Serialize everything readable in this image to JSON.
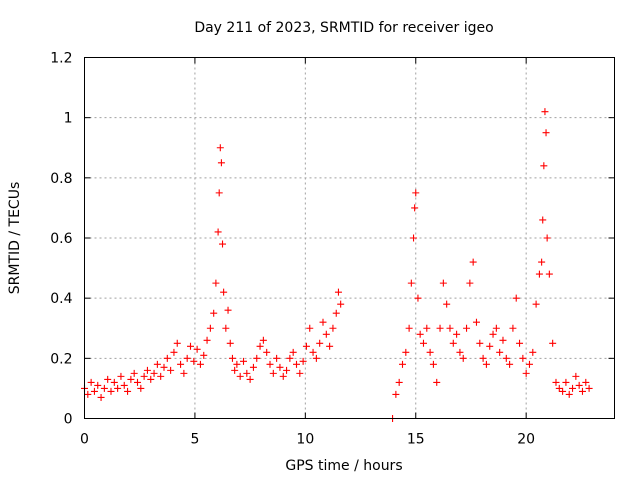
{
  "chart_data": {
    "type": "scatter",
    "title": "Day 211 of 2023, SRMTID for receiver igeo",
    "xlabel": "GPS time / hours",
    "ylabel": "SRMTID / TECUs",
    "xlim": [
      0,
      24
    ],
    "ylim": [
      0,
      1.2
    ],
    "xticks": [
      0,
      5,
      10,
      15,
      20
    ],
    "xtick_labels": [
      "0",
      "5",
      "10",
      "15",
      "20"
    ],
    "yticks": [
      0,
      0.2,
      0.4,
      0.6,
      0.8,
      1.0,
      1.2
    ],
    "ytick_labels": [
      "0",
      "0.2",
      "0.4",
      "0.6",
      "0.8",
      "1",
      "1.2"
    ],
    "grid": true,
    "marker": "+",
    "marker_color": "#ff0000",
    "series": [
      {
        "name": "SRMTID",
        "x": [
          0.0,
          0.15,
          0.3,
          0.45,
          0.6,
          0.75,
          0.9,
          1.05,
          1.2,
          1.35,
          1.5,
          1.65,
          1.8,
          1.95,
          2.1,
          2.25,
          2.4,
          2.55,
          2.7,
          2.85,
          3.0,
          3.15,
          3.3,
          3.45,
          3.6,
          3.75,
          3.9,
          4.05,
          4.2,
          4.35,
          4.5,
          4.65,
          4.8,
          4.95,
          5.1,
          5.25,
          5.4,
          5.55,
          5.7,
          5.85,
          5.95,
          6.05,
          6.1,
          6.15,
          6.2,
          6.25,
          6.3,
          6.4,
          6.5,
          6.6,
          6.7,
          6.8,
          6.9,
          7.05,
          7.2,
          7.35,
          7.5,
          7.65,
          7.8,
          7.95,
          8.1,
          8.25,
          8.4,
          8.55,
          8.7,
          8.85,
          9.0,
          9.15,
          9.3,
          9.45,
          9.6,
          9.75,
          9.9,
          10.05,
          10.2,
          10.35,
          10.5,
          10.65,
          10.8,
          10.95,
          11.1,
          11.25,
          11.4,
          11.5,
          11.6,
          13.95,
          14.1,
          14.25,
          14.4,
          14.55,
          14.7,
          14.8,
          14.9,
          14.95,
          15.0,
          15.1,
          15.2,
          15.35,
          15.5,
          15.65,
          15.8,
          15.95,
          16.1,
          16.25,
          16.4,
          16.55,
          16.7,
          16.85,
          17.0,
          17.15,
          17.3,
          17.45,
          17.6,
          17.75,
          17.9,
          18.05,
          18.2,
          18.35,
          18.5,
          18.65,
          18.8,
          18.95,
          19.1,
          19.25,
          19.4,
          19.55,
          19.7,
          19.85,
          20.0,
          20.15,
          20.3,
          20.45,
          20.6,
          20.7,
          20.75,
          20.8,
          20.85,
          20.9,
          20.95,
          21.05,
          21.2,
          21.35,
          21.5,
          21.65,
          21.8,
          21.95,
          22.1,
          22.25,
          22.4,
          22.55,
          22.7,
          22.85
        ],
        "y": [
          0.1,
          0.08,
          0.12,
          0.09,
          0.11,
          0.07,
          0.1,
          0.13,
          0.09,
          0.12,
          0.1,
          0.14,
          0.11,
          0.09,
          0.13,
          0.15,
          0.12,
          0.1,
          0.14,
          0.16,
          0.13,
          0.15,
          0.18,
          0.14,
          0.17,
          0.2,
          0.16,
          0.22,
          0.25,
          0.18,
          0.15,
          0.2,
          0.24,
          0.19,
          0.23,
          0.18,
          0.21,
          0.26,
          0.3,
          0.35,
          0.45,
          0.62,
          0.75,
          0.9,
          0.85,
          0.58,
          0.42,
          0.3,
          0.36,
          0.25,
          0.2,
          0.16,
          0.18,
          0.14,
          0.19,
          0.15,
          0.13,
          0.17,
          0.2,
          0.24,
          0.26,
          0.22,
          0.18,
          0.15,
          0.2,
          0.17,
          0.14,
          0.16,
          0.2,
          0.22,
          0.18,
          0.15,
          0.19,
          0.24,
          0.3,
          0.22,
          0.2,
          0.25,
          0.32,
          0.28,
          0.24,
          0.3,
          0.35,
          0.42,
          0.38,
          0.0,
          0.08,
          0.12,
          0.18,
          0.22,
          0.3,
          0.45,
          0.6,
          0.7,
          0.75,
          0.4,
          0.28,
          0.25,
          0.3,
          0.22,
          0.18,
          0.12,
          0.3,
          0.45,
          0.38,
          0.3,
          0.25,
          0.28,
          0.22,
          0.2,
          0.3,
          0.45,
          0.52,
          0.32,
          0.25,
          0.2,
          0.18,
          0.24,
          0.28,
          0.3,
          0.22,
          0.26,
          0.2,
          0.18,
          0.3,
          0.4,
          0.25,
          0.2,
          0.15,
          0.18,
          0.22,
          0.38,
          0.48,
          0.52,
          0.66,
          0.84,
          1.02,
          0.95,
          0.6,
          0.48,
          0.25,
          0.12,
          0.1,
          0.09,
          0.12,
          0.08,
          0.1,
          0.14,
          0.11,
          0.09,
          0.12,
          0.1
        ]
      }
    ]
  }
}
